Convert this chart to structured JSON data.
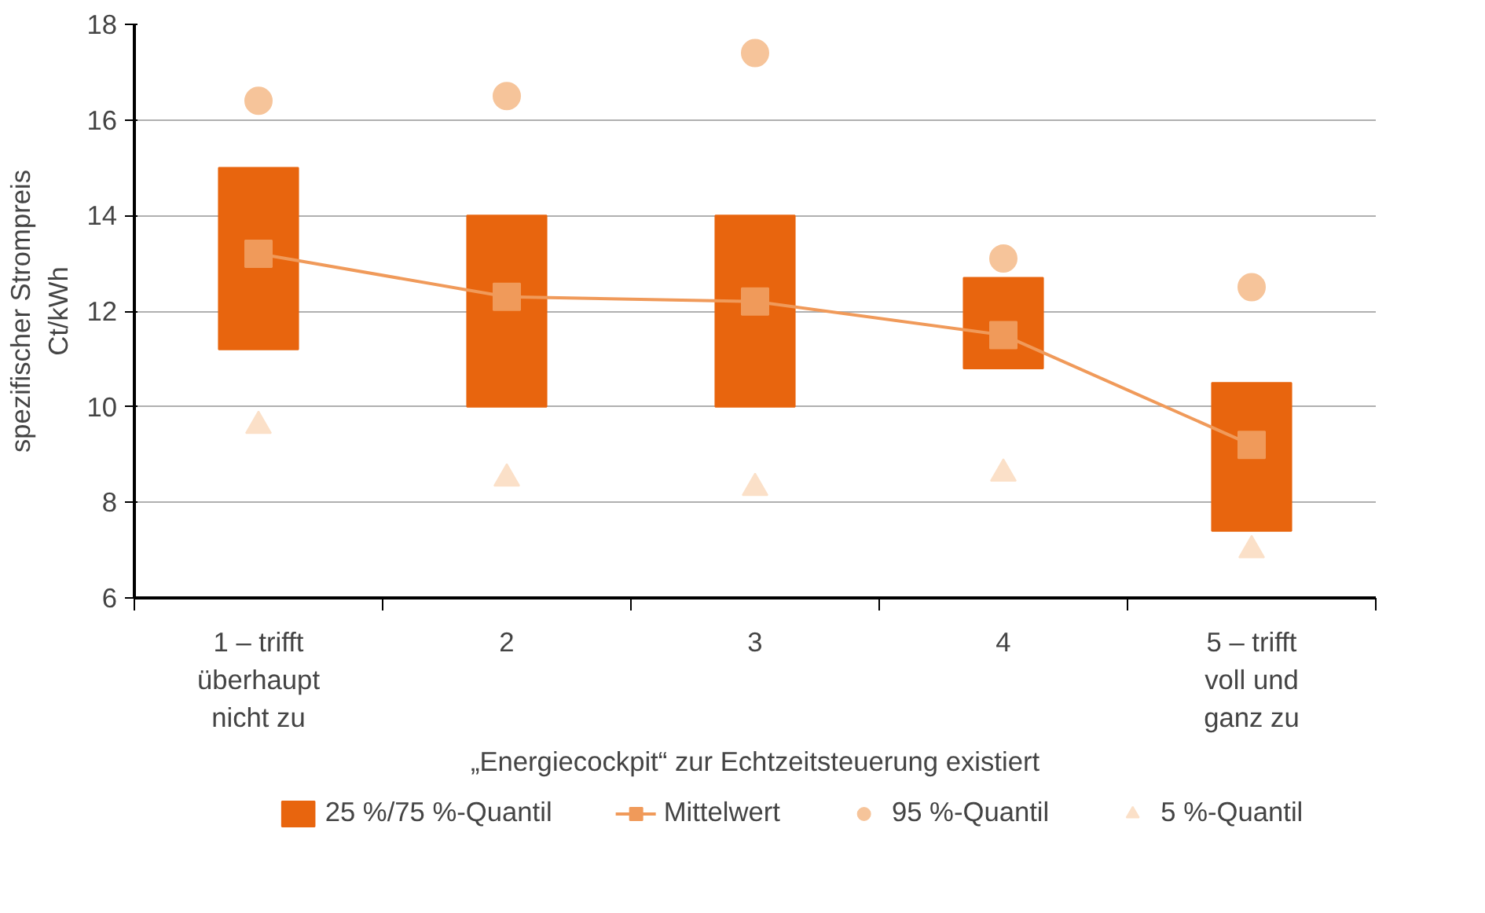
{
  "chart_data": {
    "type": "bar",
    "xlabel": "„Energiecockpit“ zur Echtzeitsteuerung existiert",
    "ylabel": "spezifischer Strompreis\nCt/kWh",
    "categories": [
      "1 – trifft\nüberhaupt\nnicht zu",
      "2",
      "3",
      "4",
      "5 – trifft\nvoll und\nganz zu"
    ],
    "series": [
      {
        "name": "25 %/75 %-Quantil",
        "color": "#e8650e",
        "base": [
          11.2,
          10,
          10,
          10.8,
          7.4
        ],
        "values": [
          3.8,
          4,
          4,
          1.9,
          3.1
        ]
      },
      {
        "name": "Mittelwert",
        "type": "line",
        "color": "#f09a5a",
        "marker": "square",
        "values": [
          13.2,
          12.3,
          12.2,
          11.5,
          9.2
        ]
      },
      {
        "name": "95 %-Quantil",
        "type": "scatter",
        "color": "#f6c49a",
        "marker": "circle",
        "values": [
          16.4,
          16.5,
          17.4,
          13.1,
          12.5
        ]
      },
      {
        "name": "5 %-Quantil",
        "type": "scatter",
        "color": "#fbe0c8",
        "marker": "triangle",
        "values": [
          9.6,
          8.5,
          8.3,
          8.6,
          7.0
        ]
      }
    ],
    "ylim": [
      6,
      18
    ],
    "yticks": [
      6,
      8,
      10,
      12,
      14,
      16,
      18
    ],
    "grid": "y",
    "legend": "bottom"
  }
}
